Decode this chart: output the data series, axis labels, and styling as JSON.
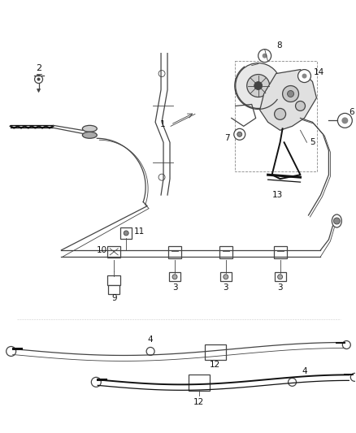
{
  "bg_color": "#ffffff",
  "line_color": "#444444",
  "dark_line_color": "#111111",
  "label_color": "#111111",
  "label_fontsize": 7.5,
  "fig_width": 4.38,
  "fig_height": 5.33,
  "dpi": 100
}
